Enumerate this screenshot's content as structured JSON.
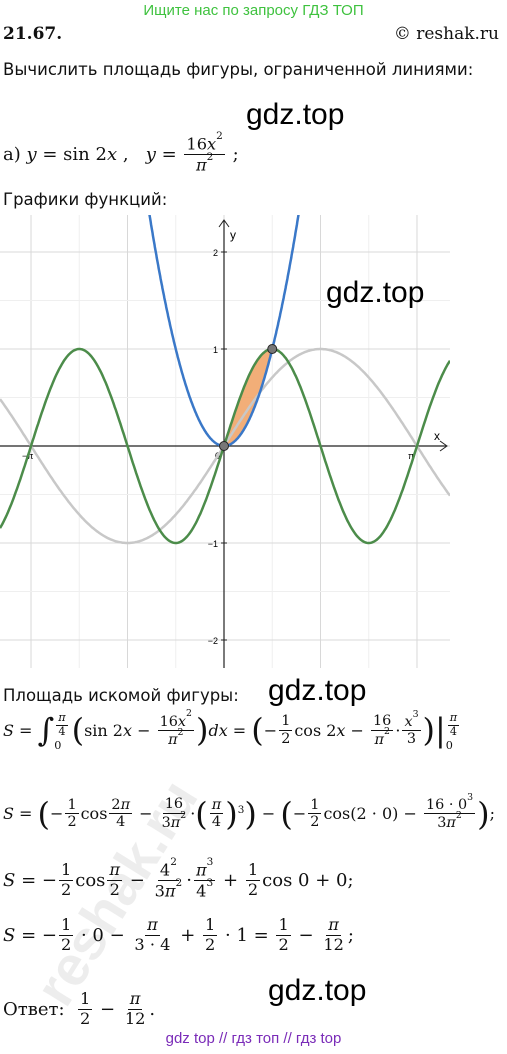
{
  "header": {
    "banner": "Ищите нас по запросу ГДЗ ТОП",
    "number": "21.67.",
    "copyright": "© reshak.ru"
  },
  "task": "Вычислить площадь фигуры, ограниченной линиями:",
  "part_a": [
    "а) ",
    {
      "i": "y"
    },
    " = sin 2",
    {
      "i": "x"
    },
    " ,   ",
    {
      "i": "y"
    },
    " = ",
    {
      "n": [
        "16",
        {
          "i": "x"
        },
        {
          "sup": [
            "2"
          ]
        }
      ],
      "d": [
        {
          "i": "π"
        },
        {
          "sup": [
            "2"
          ]
        }
      ]
    },
    " ;"
  ],
  "graphs_caption": "Графики функций:",
  "graph": {
    "axis_x": "x",
    "axis_y": "y",
    "xticks": [
      {
        "value": -3.1416,
        "label": "−π"
      },
      0,
      {
        "value": 3.1416,
        "label": "π"
      }
    ],
    "yticks": [
      {
        "value": -2,
        "label": "−2"
      },
      {
        "value": -1,
        "label": "−1"
      },
      1,
      2
    ],
    "watermark": "gdz.top"
  },
  "area_caption": "Площадь искомой фигуры:",
  "formulas": [
    [
      {
        "i": "S"
      },
      " = ",
      {
        "big": "∫"
      },
      {
        "lim": {
          "up": [
            {
              "n": [
                {
                  "i": "π"
                }
              ],
              "d": [
                "4"
              ]
            }
          ],
          "lo": [
            "0"
          ]
        }
      },
      {
        "big": "("
      },
      "sin 2",
      {
        "i": "x"
      },
      " − ",
      {
        "n": [
          "16",
          {
            "i": "x"
          },
          {
            "sup": [
              "2"
            ]
          }
        ],
        "d": [
          {
            "i": "π"
          },
          {
            "sup": [
              "2"
            ]
          }
        ]
      },
      {
        "big": ")"
      },
      {
        "i": "dx"
      },
      " = ",
      {
        "big": "("
      },
      "−",
      {
        "n": [
          "1"
        ],
        "d": [
          "2"
        ]
      },
      "cos 2",
      {
        "i": "x"
      },
      " − ",
      {
        "n": [
          "16"
        ],
        "d": [
          {
            "i": "π"
          },
          {
            "sup": [
              "2"
            ]
          }
        ]
      },
      "·",
      {
        "n": [
          {
            "i": "x"
          },
          {
            "sup": [
              "3"
            ]
          }
        ],
        "d": [
          "3"
        ]
      },
      {
        "big": ")"
      },
      {
        "big": "|"
      },
      {
        "lim": {
          "up": [
            {
              "n": [
                {
                  "i": "π"
                }
              ],
              "d": [
                "4"
              ]
            }
          ],
          "lo": [
            "0"
          ]
        }
      }
    ],
    [
      {
        "i": "S"
      },
      " = ",
      {
        "big": "("
      },
      "−",
      {
        "n": [
          "1"
        ],
        "d": [
          "2"
        ]
      },
      "cos",
      {
        "n": [
          "2",
          {
            "i": "π"
          }
        ],
        "d": [
          "4"
        ]
      },
      " − ",
      {
        "n": [
          "16"
        ],
        "d": [
          "3",
          {
            "i": "π"
          },
          {
            "sup": [
              "2"
            ]
          }
        ]
      },
      "·",
      {
        "big": "("
      },
      {
        "n": [
          {
            "i": "π"
          }
        ],
        "d": [
          "4"
        ]
      },
      {
        "big": ")"
      },
      {
        "sup": [
          "3"
        ]
      },
      {
        "big": ")"
      },
      " − ",
      {
        "big": "("
      },
      "−",
      {
        "n": [
          "1"
        ],
        "d": [
          "2"
        ]
      },
      "cos(2 · 0) − ",
      {
        "n": [
          "16 · 0",
          {
            "sup": [
              "3"
            ]
          }
        ],
        "d": [
          "3",
          {
            "i": "π"
          },
          {
            "sup": [
              "2"
            ]
          }
        ]
      },
      {
        "big": ")"
      },
      ";"
    ],
    [
      {
        "i": "S"
      },
      " = −",
      {
        "n": [
          "1"
        ],
        "d": [
          "2"
        ]
      },
      "cos",
      {
        "n": [
          {
            "i": "π"
          }
        ],
        "d": [
          "2"
        ]
      },
      " − ",
      {
        "n": [
          "4",
          {
            "sup": [
              "2"
            ]
          }
        ],
        "d": [
          "3",
          {
            "i": "π"
          },
          {
            "sup": [
              "2"
            ]
          }
        ]
      },
      "·",
      {
        "n": [
          {
            "i": "π"
          },
          {
            "sup": [
              "3"
            ]
          }
        ],
        "d": [
          "4",
          {
            "sup": [
              "3"
            ]
          }
        ]
      },
      " + ",
      {
        "n": [
          "1"
        ],
        "d": [
          "2"
        ]
      },
      "cos 0 + 0;"
    ],
    [
      {
        "i": "S"
      },
      " = −",
      {
        "n": [
          "1"
        ],
        "d": [
          "2"
        ]
      },
      " · 0 − ",
      {
        "n": [
          {
            "i": "π"
          }
        ],
        "d": [
          "3 · 4"
        ]
      },
      " + ",
      {
        "n": [
          "1"
        ],
        "d": [
          "2"
        ]
      },
      " · 1 = ",
      {
        "n": [
          "1"
        ],
        "d": [
          "2"
        ]
      },
      " − ",
      {
        "n": [
          {
            "i": "π"
          }
        ],
        "d": [
          "12"
        ]
      },
      ";"
    ]
  ],
  "answer": [
    "Ответ:  ",
    {
      "n": [
        "1"
      ],
      "d": [
        "2"
      ]
    },
    " − ",
    {
      "n": [
        {
          "i": "π"
        }
      ],
      "d": [
        "12"
      ]
    },
    "."
  ],
  "watermarks": [
    "gdz.top",
    "gdz.top",
    "gdz.top"
  ],
  "stamp": "reshak.ru",
  "footer": "gdz top  //  гдз топ  //  гдз top"
}
